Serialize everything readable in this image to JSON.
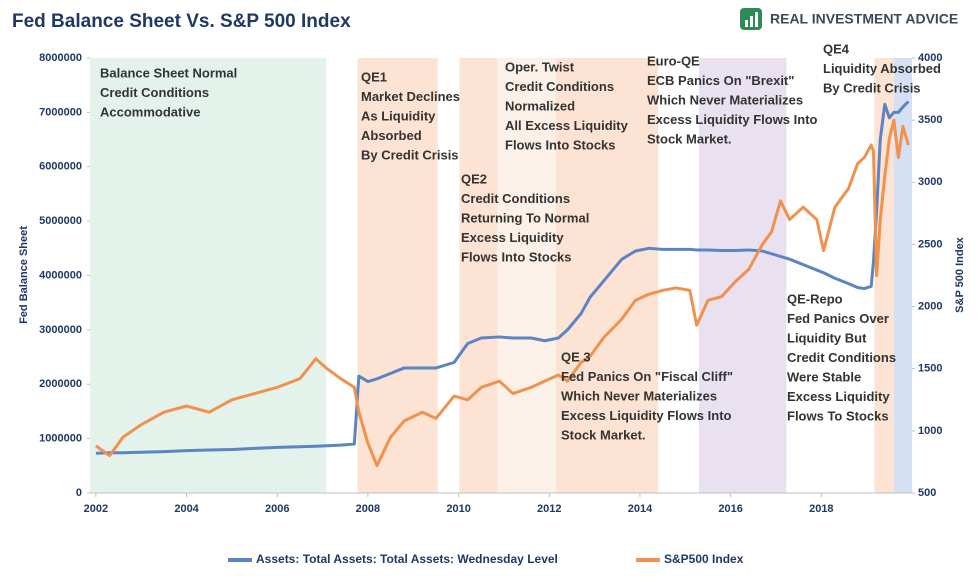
{
  "chart_data": {
    "type": "line",
    "title": "Fed Balance Sheet Vs. S&P 500 Index",
    "brand": "REAL INVESTMENT ADVICE",
    "y_label": "Fed Balance Sheet",
    "y2_label": "S&P 500 Index",
    "xlim": [
      2001.87,
      2020.0
    ],
    "xticks": [
      2002,
      2004,
      2006,
      2008,
      2010,
      2012,
      2014,
      2016,
      2018
    ],
    "ylim": [
      0,
      8000000
    ],
    "yticks": [
      0,
      1000000,
      2000000,
      3000000,
      4000000,
      5000000,
      6000000,
      7000000,
      8000000
    ],
    "y2lim": [
      500,
      4000
    ],
    "y2ticks": [
      500,
      1000,
      1500,
      2000,
      2500,
      3000,
      3500,
      4000
    ],
    "grid": false,
    "legend": "bottom",
    "x": [
      2002.0,
      2002.3,
      2002.6,
      2003.0,
      2003.5,
      2004.0,
      2004.5,
      2005.0,
      2005.5,
      2006.0,
      2006.5,
      2006.85,
      2007.1,
      2007.4,
      2007.7,
      2007.8,
      2008.0,
      2008.2,
      2008.5,
      2008.8,
      2009.2,
      2009.5,
      2009.9,
      2010.2,
      2010.5,
      2010.9,
      2011.2,
      2011.6,
      2011.9,
      2012.2,
      2012.4,
      2012.7,
      2012.9,
      2013.2,
      2013.6,
      2013.9,
      2014.2,
      2014.5,
      2014.8,
      2015.1,
      2015.25,
      2015.5,
      2015.8,
      2016.1,
      2016.4,
      2016.7,
      2016.9,
      2017.1,
      2017.3,
      2017.6,
      2017.9,
      2018.05,
      2018.3,
      2018.6,
      2018.8,
      2018.95,
      2019.1,
      2019.15,
      2019.22,
      2019.3,
      2019.4,
      2019.5,
      2019.6,
      2019.7,
      2019.8,
      2019.92
    ],
    "series": [
      {
        "name": "Assets: Total Assets: Total Assets: Wednesday Level",
        "color": "#5b84c4",
        "axis": "y",
        "values": [
          730000,
          740000,
          740000,
          750000,
          760000,
          780000,
          790000,
          800000,
          820000,
          840000,
          850000,
          860000,
          870000,
          880000,
          900000,
          2150000,
          2050000,
          2100000,
          2200000,
          2300000,
          2300000,
          2300000,
          2400000,
          2750000,
          2850000,
          2870000,
          2850000,
          2850000,
          2800000,
          2850000,
          3000000,
          3300000,
          3600000,
          3900000,
          4300000,
          4450000,
          4500000,
          4480000,
          4480000,
          4480000,
          4470000,
          4470000,
          4460000,
          4460000,
          4470000,
          4450000,
          4400000,
          4350000,
          4300000,
          4200000,
          4100000,
          4050000,
          3950000,
          3850000,
          3780000,
          3760000,
          3800000,
          4250000,
          5200000,
          6500000,
          7150000,
          6900000,
          7000000,
          7000000,
          7100000,
          7200000
        ]
      },
      {
        "name": "S&P500 Index",
        "color": "#f0914e",
        "axis": "y2",
        "values": [
          880,
          800,
          950,
          1050,
          1150,
          1200,
          1150,
          1250,
          1300,
          1350,
          1420,
          1580,
          1500,
          1420,
          1350,
          1150,
          900,
          720,
          950,
          1080,
          1150,
          1100,
          1280,
          1250,
          1350,
          1400,
          1300,
          1350,
          1400,
          1450,
          1400,
          1550,
          1600,
          1750,
          1900,
          2050,
          2100,
          2130,
          2150,
          2130,
          1850,
          2050,
          2080,
          2200,
          2300,
          2500,
          2600,
          2850,
          2700,
          2800,
          2700,
          2450,
          2800,
          2950,
          3150,
          3200,
          3300,
          3250,
          2250,
          2700,
          3050,
          3350,
          3500,
          3200,
          3450,
          3300
        ]
      }
    ],
    "regions": [
      {
        "start": 2001.87,
        "end": 2007.08,
        "color": "#e3f3ec"
      },
      {
        "start": 2007.77,
        "end": 2009.54,
        "color": "#fce3d3"
      },
      {
        "start": 2010.02,
        "end": 2010.86,
        "color": "#fce3d3"
      },
      {
        "start": 2010.86,
        "end": 2012.14,
        "color": "#fcf1e9"
      },
      {
        "start": 2012.14,
        "end": 2014.4,
        "color": "#fce3d3"
      },
      {
        "start": 2015.3,
        "end": 2017.23,
        "color": "#e9e1ef"
      },
      {
        "start": 2019.17,
        "end": 2019.6,
        "color": "#fce3d3"
      },
      {
        "start": 2019.6,
        "end": 2020.0,
        "color": "#d5e1f2"
      }
    ],
    "annotations": [
      {
        "lines": [
          "Balance Sheet Normal",
          "Credit Conditions",
          "Accommodative"
        ]
      },
      {
        "lines": [
          "QE1",
          "Market Declines",
          "As Liquidity",
          "Absorbed",
          "By Credit Crisis"
        ]
      },
      {
        "lines": [
          "QE2",
          "Credit Conditions",
          "Returning To Normal",
          "Excess Liquidity",
          "Flows Into Stocks"
        ]
      },
      {
        "lines": [
          "Oper. Twist",
          "Credit Conditions",
          "Normalized",
          "All Excess Liquidity",
          "Flows Into Stocks"
        ]
      },
      {
        "lines": [
          "Euro-QE",
          "ECB Panics On \"Brexit\"",
          "Which Never Materializes",
          "Excess Liquidity Flows Into",
          "Stock Market."
        ]
      },
      {
        "lines": [
          "QE 3",
          "Fed Panics On \"Fiscal Cliff\"",
          "Which Never Materializes",
          "Excess Liquidity Flows Into",
          "Stock Market."
        ]
      },
      {
        "lines": [
          "QE-Repo",
          "Fed Panics Over",
          "Liquidity But",
          "Credit Conditions",
          "Were Stable",
          "Excess Liquidity",
          "Flows To Stocks"
        ]
      },
      {
        "lines": [
          "QE4",
          "Liquidity Absorbed",
          "By Credit Crisis"
        ]
      }
    ]
  }
}
